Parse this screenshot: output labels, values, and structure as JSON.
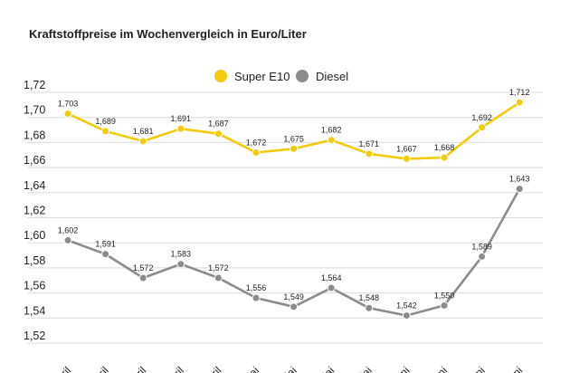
{
  "chart_data": {
    "type": "line",
    "title": "Kraftstoffpreise im Wochenvergleich in Euro/Liter",
    "xlabel": "",
    "ylabel": "",
    "ylim": [
      1.52,
      1.72
    ],
    "yticks": [
      "1,72",
      "1,70",
      "1,68",
      "1,66",
      "1,64",
      "1,62",
      "1,60",
      "1,58",
      "1,56",
      "1,54",
      "1,52"
    ],
    "grid": true,
    "legend": "top-center",
    "categories": [
      "April",
      "April",
      "April",
      "April",
      "April",
      "Mai",
      "Mai",
      "Mai",
      "Mai",
      "Juni",
      "Juni",
      "Juni",
      "Juni"
    ],
    "series": [
      {
        "name": "Super E10",
        "color": "#f2cc0c",
        "values": [
          1.703,
          1.689,
          1.681,
          1.691,
          1.687,
          1.672,
          1.675,
          1.682,
          1.671,
          1.667,
          1.668,
          1.692,
          1.712
        ],
        "labels": [
          "1,703",
          "1,689",
          "1,681",
          "1,691",
          "1,687",
          "1,672",
          "1,675",
          "1,682",
          "1,671",
          "1,667",
          "1,668",
          "1,692",
          "1,712"
        ]
      },
      {
        "name": "Diesel",
        "color": "#8c8c8c",
        "values": [
          1.602,
          1.591,
          1.572,
          1.583,
          1.572,
          1.556,
          1.549,
          1.564,
          1.548,
          1.542,
          1.55,
          1.589,
          1.643
        ],
        "labels": [
          "1,602",
          "1,591",
          "1,572",
          "1,583",
          "1,572",
          "1,556",
          "1,549",
          "1,564",
          "1,548",
          "1,542",
          "1,550",
          "1,589",
          "1,643"
        ]
      }
    ]
  }
}
